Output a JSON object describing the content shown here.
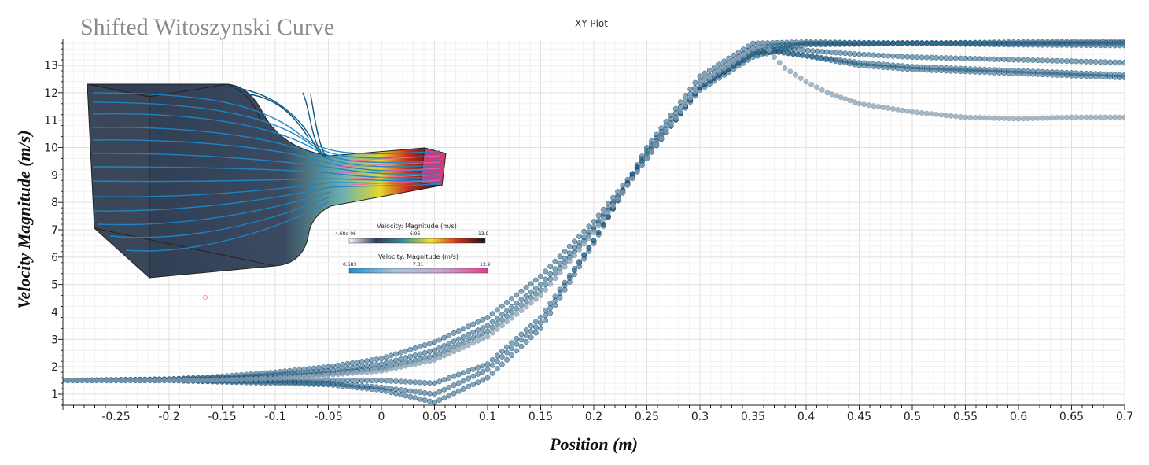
{
  "overlay_title": "Shifted Witoszynski Curve",
  "colorbars": [
    {
      "title": "Velocity: Magnitude (m/s)",
      "min_label": "4.68e-06",
      "mid_label": "6.96",
      "max_label": "13.9",
      "stops": [
        "#f8f8f6",
        "#2d3b58",
        "#3e8d9a",
        "#f2e02a",
        "#cc2c1c",
        "#1a1414"
      ]
    },
    {
      "title": "Velocity: Magnitude (m/s)",
      "min_label": "0.683",
      "mid_label": "7.31",
      "max_label": "13.9",
      "stops": [
        "#1e90d4",
        "#a8c4dc",
        "#c9a3c9",
        "#ea3c8f"
      ]
    }
  ],
  "inset": {
    "description_icon": "nozzle-streamline-render-icon"
  },
  "chart_data": {
    "type": "scatter",
    "title": "XY Plot",
    "xlabel": "Position (m)",
    "ylabel": "Velocity Magnitude (m/s)",
    "xlim": [
      -0.3,
      0.7
    ],
    "ylim": [
      0.6,
      13.9
    ],
    "xticks": [
      -0.25,
      -0.2,
      -0.15,
      -0.1,
      -0.05,
      0,
      0.05,
      0.1,
      0.15,
      0.2,
      0.25,
      0.3,
      0.35,
      0.4,
      0.45,
      0.5,
      0.55,
      0.6,
      0.65,
      0.7
    ],
    "xtick_labels": [
      "-0.25",
      "-0.2",
      "-0.15",
      "-0.1",
      "-0.05",
      "0",
      "0.05",
      "0.1",
      "0.15",
      "0.2",
      "0.25",
      "0.3",
      "0.35",
      "0.4",
      "0.45",
      "0.5",
      "0.55",
      "0.6",
      "0.65",
      "0.7"
    ],
    "yticks": [
      1,
      2,
      3,
      4,
      5,
      6,
      7,
      8,
      9,
      10,
      11,
      12,
      13
    ],
    "grid": true,
    "legend": "none",
    "marker_color": "#1f5f86",
    "series": [
      {
        "x": [
          -0.3,
          -0.2,
          -0.1,
          -0.05,
          0,
          0.05,
          0.1,
          0.15,
          0.2,
          0.25,
          0.3,
          0.35,
          0.4,
          0.5,
          0.6,
          0.7
        ],
        "y": [
          1.5,
          1.5,
          1.5,
          1.5,
          1.5,
          1.4,
          2.1,
          3.8,
          6.6,
          9.8,
          12.2,
          13.5,
          13.75,
          13.8,
          13.85,
          13.88
        ]
      },
      {
        "x": [
          -0.3,
          -0.2,
          -0.1,
          -0.05,
          0,
          0.05,
          0.1,
          0.15,
          0.2,
          0.25,
          0.3,
          0.35,
          0.4,
          0.5,
          0.6,
          0.7
        ],
        "y": [
          1.5,
          1.5,
          1.45,
          1.4,
          1.25,
          1.0,
          1.9,
          3.6,
          6.6,
          9.9,
          12.4,
          13.65,
          13.8,
          13.82,
          13.8,
          13.82
        ]
      },
      {
        "x": [
          -0.3,
          -0.2,
          -0.1,
          -0.05,
          0,
          0.05,
          0.1,
          0.15,
          0.2,
          0.25,
          0.3,
          0.35,
          0.4,
          0.5,
          0.6,
          0.7
        ],
        "y": [
          1.5,
          1.5,
          1.4,
          1.35,
          1.15,
          0.7,
          1.6,
          3.4,
          6.5,
          10.0,
          12.6,
          13.8,
          13.85,
          13.8,
          13.75,
          13.72
        ]
      },
      {
        "x": [
          -0.3,
          -0.2,
          -0.15,
          -0.1,
          -0.05,
          0,
          0.05,
          0.1,
          0.15,
          0.2,
          0.25,
          0.3,
          0.35,
          0.38,
          0.45,
          0.5,
          0.6,
          0.7
        ],
        "y": [
          1.5,
          1.55,
          1.65,
          1.8,
          2.0,
          2.3,
          2.9,
          3.8,
          5.3,
          7.3,
          9.7,
          12.1,
          13.3,
          13.6,
          13.4,
          13.3,
          13.2,
          13.1
        ]
      },
      {
        "x": [
          -0.3,
          -0.2,
          -0.15,
          -0.1,
          -0.05,
          0,
          0.05,
          0.1,
          0.15,
          0.2,
          0.25,
          0.3,
          0.35,
          0.37,
          0.45,
          0.5,
          0.6,
          0.7
        ],
        "y": [
          1.5,
          1.55,
          1.6,
          1.7,
          1.85,
          2.1,
          2.6,
          3.5,
          5.0,
          7.1,
          9.6,
          12.2,
          13.4,
          13.5,
          13.1,
          12.95,
          12.8,
          12.65
        ]
      },
      {
        "x": [
          -0.3,
          -0.2,
          -0.15,
          -0.1,
          -0.05,
          0,
          0.05,
          0.1,
          0.15,
          0.2,
          0.25,
          0.3,
          0.35,
          0.37,
          0.45,
          0.5,
          0.6,
          0.7
        ],
        "y": [
          1.5,
          1.5,
          1.55,
          1.62,
          1.75,
          1.95,
          2.4,
          3.3,
          4.8,
          7.0,
          9.6,
          12.2,
          13.45,
          13.55,
          13.0,
          12.85,
          12.7,
          12.55
        ]
      },
      {
        "x": [
          -0.3,
          -0.2,
          -0.15,
          -0.1,
          -0.05,
          0,
          0.05,
          0.1,
          0.15,
          0.2,
          0.25,
          0.3,
          0.35,
          0.36,
          0.37,
          0.38,
          0.4,
          0.42,
          0.45,
          0.5,
          0.55,
          0.6,
          0.65,
          0.7
        ],
        "y": [
          1.5,
          1.5,
          1.52,
          1.58,
          1.7,
          1.85,
          2.25,
          3.1,
          4.6,
          6.9,
          9.6,
          12.3,
          13.6,
          13.8,
          13.3,
          12.9,
          12.4,
          12.0,
          11.6,
          11.3,
          11.1,
          11.05,
          11.1,
          11.1
        ]
      }
    ]
  }
}
